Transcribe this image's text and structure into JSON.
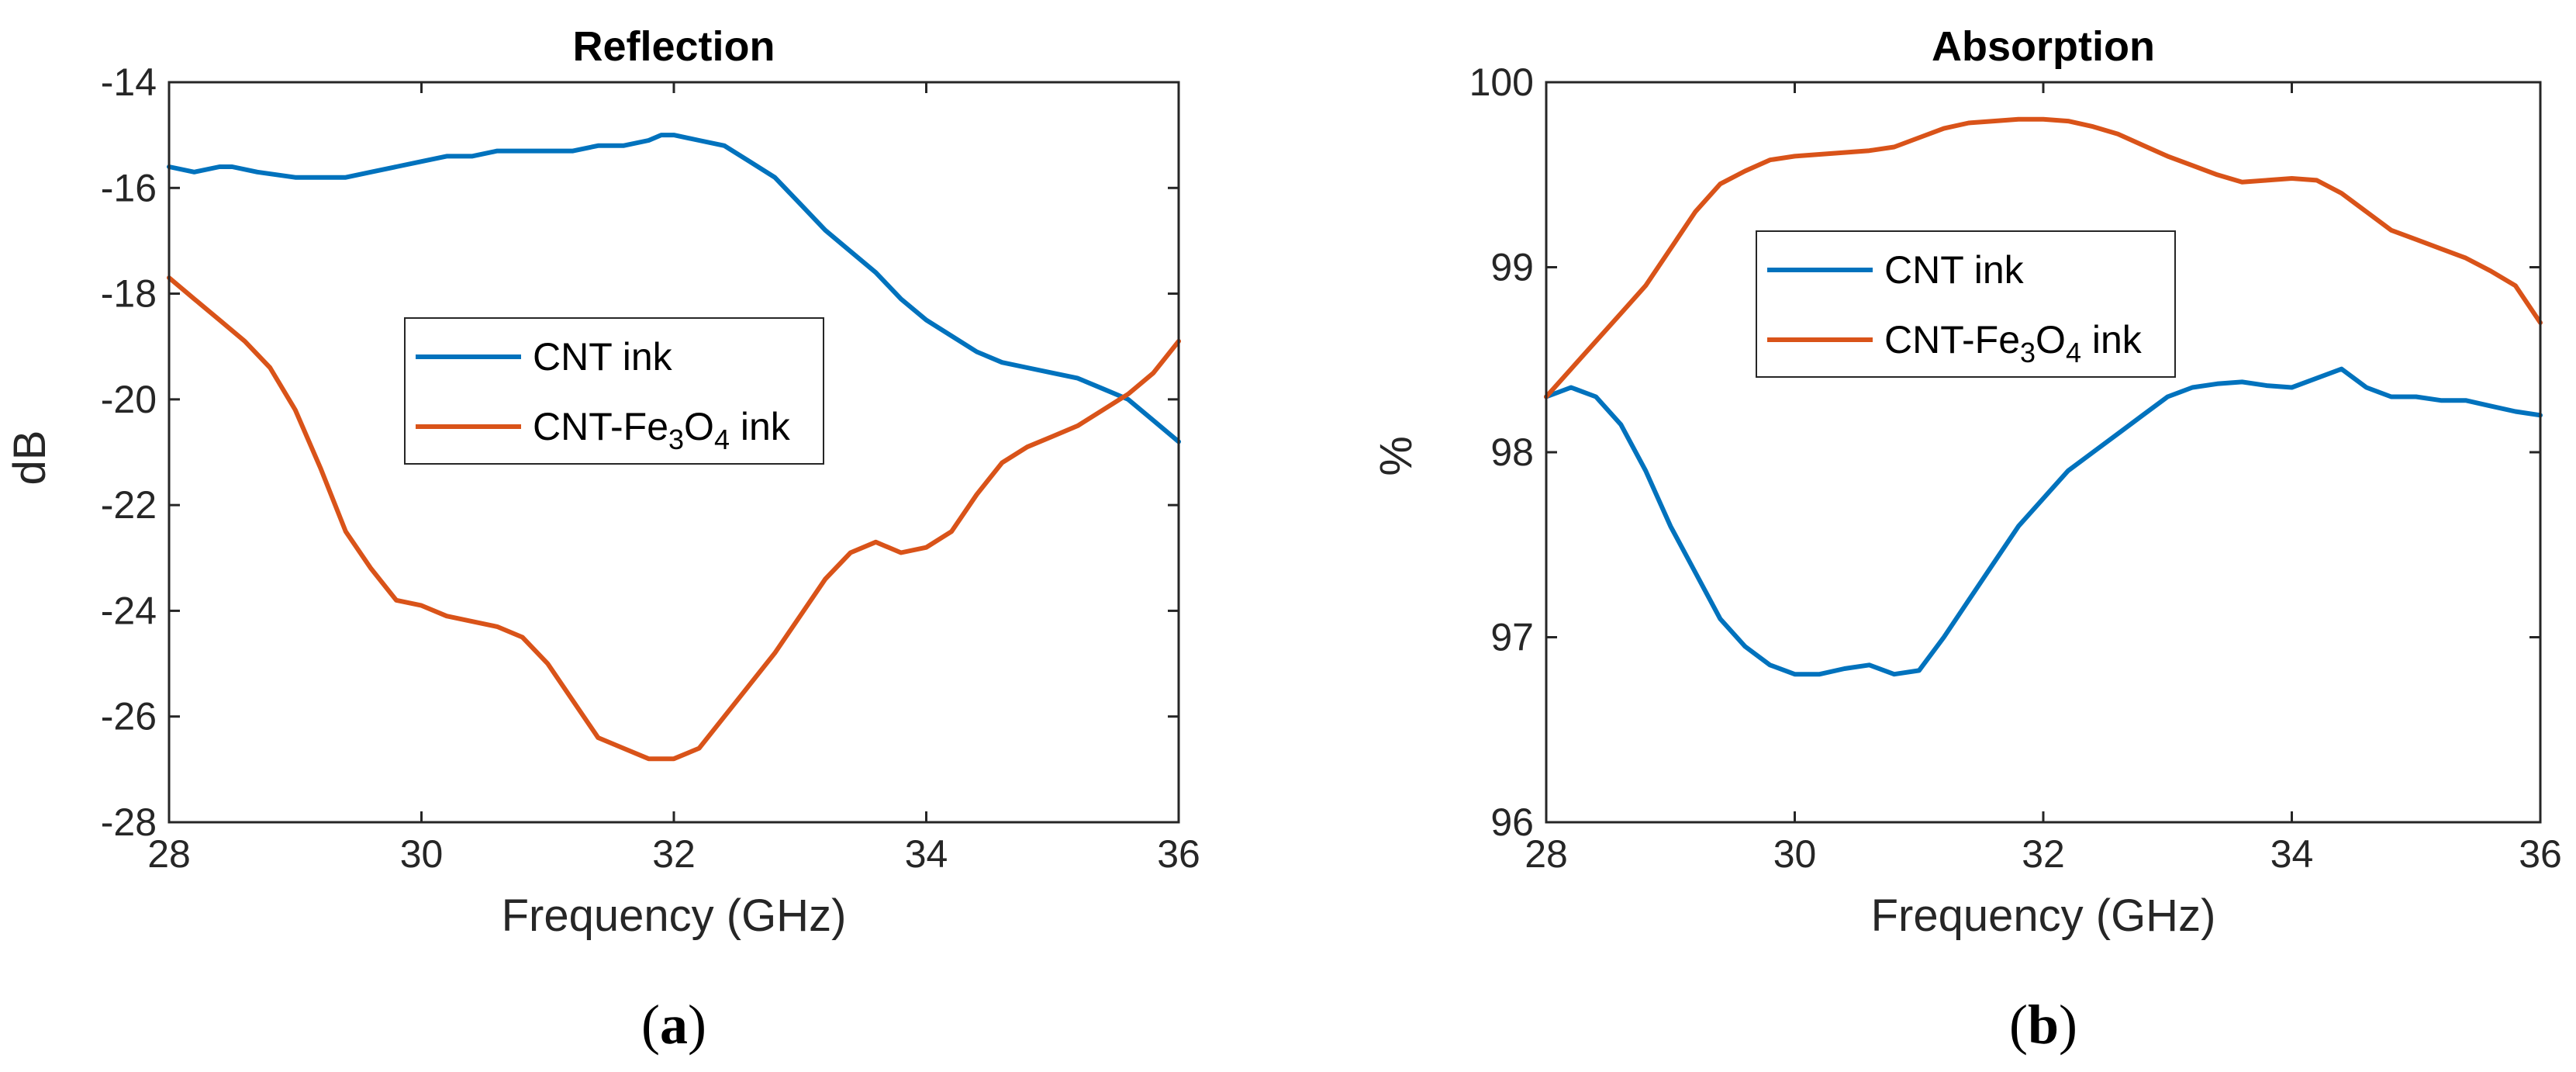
{
  "chart_data": [
    {
      "type": "line",
      "panel_label": "a",
      "title": "Reflection",
      "xlabel": "Frequency (GHz)",
      "ylabel": "dB",
      "xlim": [
        28,
        36
      ],
      "ylim": [
        -28,
        -14
      ],
      "xticks": [
        28,
        30,
        32,
        34,
        36
      ],
      "yticks": [
        -28,
        -26,
        -24,
        -22,
        -20,
        -18,
        -16,
        -14
      ],
      "grid": false,
      "legend_position": "center-left",
      "series": [
        {
          "name": "CNT ink",
          "color": "#0072BD",
          "x": [
            28.0,
            28.2,
            28.4,
            28.5,
            28.7,
            29.0,
            29.2,
            29.4,
            29.6,
            29.8,
            30.0,
            30.2,
            30.4,
            30.6,
            30.8,
            31.0,
            31.2,
            31.4,
            31.6,
            31.8,
            31.9,
            32.0,
            32.2,
            32.4,
            32.6,
            32.8,
            33.0,
            33.2,
            33.4,
            33.6,
            33.8,
            34.0,
            34.2,
            34.4,
            34.6,
            34.8,
            35.0,
            35.2,
            35.4,
            35.6,
            35.8,
            36.0
          ],
          "y": [
            -15.6,
            -15.7,
            -15.6,
            -15.6,
            -15.7,
            -15.8,
            -15.8,
            -15.8,
            -15.7,
            -15.6,
            -15.5,
            -15.4,
            -15.4,
            -15.3,
            -15.3,
            -15.3,
            -15.3,
            -15.2,
            -15.2,
            -15.1,
            -15.0,
            -15.0,
            -15.1,
            -15.2,
            -15.5,
            -15.8,
            -16.3,
            -16.8,
            -17.2,
            -17.6,
            -18.1,
            -18.5,
            -18.8,
            -19.1,
            -19.3,
            -19.4,
            -19.5,
            -19.6,
            -19.8,
            -20.0,
            -20.4,
            -20.8
          ]
        },
        {
          "name": "CNT-Fe3O4 ink",
          "name_parts": [
            "CNT-Fe",
            "3",
            "O",
            "4",
            " ink"
          ],
          "color": "#D95319",
          "x": [
            28.0,
            28.2,
            28.4,
            28.6,
            28.8,
            29.0,
            29.2,
            29.4,
            29.6,
            29.8,
            30.0,
            30.2,
            30.4,
            30.6,
            30.8,
            31.0,
            31.2,
            31.4,
            31.6,
            31.8,
            32.0,
            32.2,
            32.4,
            32.6,
            32.8,
            33.0,
            33.2,
            33.4,
            33.6,
            33.8,
            34.0,
            34.2,
            34.4,
            34.6,
            34.8,
            35.0,
            35.2,
            35.4,
            35.6,
            35.8,
            36.0
          ],
          "y": [
            -17.7,
            -18.1,
            -18.5,
            -18.9,
            -19.4,
            -20.2,
            -21.3,
            -22.5,
            -23.2,
            -23.8,
            -23.9,
            -24.1,
            -24.2,
            -24.3,
            -24.5,
            -25.0,
            -25.7,
            -26.4,
            -26.6,
            -26.8,
            -26.8,
            -26.6,
            -26.0,
            -25.4,
            -24.8,
            -24.1,
            -23.4,
            -22.9,
            -22.7,
            -22.9,
            -22.8,
            -22.5,
            -21.8,
            -21.2,
            -20.9,
            -20.7,
            -20.5,
            -20.2,
            -19.9,
            -19.5,
            -18.9
          ]
        }
      ]
    },
    {
      "type": "line",
      "panel_label": "b",
      "title": "Absorption",
      "xlabel": "Frequency (GHz)",
      "ylabel": "%",
      "xlim": [
        28,
        36
      ],
      "ylim": [
        96,
        100
      ],
      "xticks": [
        28,
        30,
        32,
        34,
        36
      ],
      "yticks": [
        96,
        97,
        98,
        99,
        100
      ],
      "grid": false,
      "legend_position": "top-left",
      "series": [
        {
          "name": "CNT ink",
          "color": "#0072BD",
          "x": [
            28.0,
            28.2,
            28.4,
            28.6,
            28.8,
            29.0,
            29.2,
            29.4,
            29.6,
            29.8,
            30.0,
            30.2,
            30.4,
            30.6,
            30.8,
            31.0,
            31.2,
            31.4,
            31.6,
            31.8,
            32.0,
            32.2,
            32.4,
            32.6,
            32.8,
            33.0,
            33.2,
            33.4,
            33.6,
            33.8,
            34.0,
            34.2,
            34.4,
            34.6,
            34.8,
            35.0,
            35.2,
            35.4,
            35.6,
            35.8,
            36.0
          ],
          "y": [
            98.3,
            98.35,
            98.3,
            98.15,
            97.9,
            97.6,
            97.35,
            97.1,
            96.95,
            96.85,
            96.8,
            96.8,
            96.83,
            96.85,
            96.8,
            96.82,
            97.0,
            97.2,
            97.4,
            97.6,
            97.75,
            97.9,
            98.0,
            98.1,
            98.2,
            98.3,
            98.35,
            98.37,
            98.38,
            98.36,
            98.35,
            98.4,
            98.45,
            98.35,
            98.3,
            98.3,
            98.28,
            98.28,
            98.25,
            98.22,
            98.2
          ]
        },
        {
          "name": "CNT-Fe3O4 ink",
          "name_parts": [
            "CNT-Fe",
            "3",
            "O",
            "4",
            " ink"
          ],
          "color": "#D95319",
          "x": [
            28.0,
            28.2,
            28.4,
            28.6,
            28.8,
            29.0,
            29.2,
            29.4,
            29.6,
            29.8,
            30.0,
            30.2,
            30.4,
            30.6,
            30.8,
            31.0,
            31.2,
            31.4,
            31.6,
            31.8,
            32.0,
            32.2,
            32.4,
            32.6,
            32.8,
            33.0,
            33.2,
            33.4,
            33.6,
            33.8,
            34.0,
            34.2,
            34.4,
            34.6,
            34.8,
            35.0,
            35.2,
            35.4,
            35.6,
            35.8,
            36.0
          ],
          "y": [
            98.3,
            98.45,
            98.6,
            98.75,
            98.9,
            99.1,
            99.3,
            99.45,
            99.52,
            99.58,
            99.6,
            99.61,
            99.62,
            99.63,
            99.65,
            99.7,
            99.75,
            99.78,
            99.79,
            99.8,
            99.8,
            99.79,
            99.76,
            99.72,
            99.66,
            99.6,
            99.55,
            99.5,
            99.46,
            99.47,
            99.48,
            99.47,
            99.4,
            99.3,
            99.2,
            99.15,
            99.1,
            99.05,
            98.98,
            98.9,
            98.7
          ]
        }
      ]
    }
  ]
}
